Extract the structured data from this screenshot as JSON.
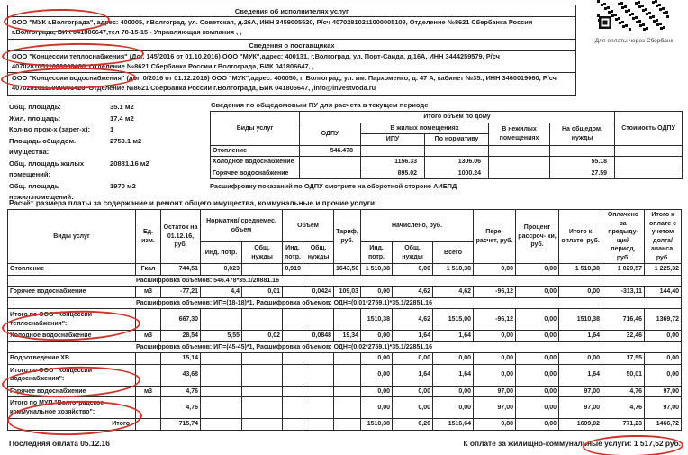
{
  "executors": {
    "title": "Сведения об исполнителях услуг",
    "text": "ООО \"МУК г.Волгограда\", адрес: 400005, г.Волгоград, ул. Советская, д.26А, ИНН 3459005520, Р/сч 40702810211000005109, Отделение  №8621 Сбербанка России г.Волгограда, БИК 041806647,тел 78-15-15 - Управляющая компания , ,"
  },
  "suppliers": {
    "title": "Сведения о поставщиках",
    "heat": "ООО \"Концессии теплоснабжения\" (Дог. 145/2016 от 01.10.2016) ООО \"МУК\",адрес:  400131, г.Волгоград, ул. Порт-Саида, д.16А, ИНН 3444259579, Р/сч 40702810511000008466, Отделение  №8621 Сбербанка России г.Волгограда, БИК 041806647, ,",
    "water": "ООО \"Концессии водоснабжения\" (дог. 0/2016 от 01.12.2016) ООО \"МУК\",адрес: 400050, г. Волгоград, ул. им. Пархоменко, д. 47 А, кабинет №35., ИНН 3460019060, Р/сч 40702810111000001423, Отделение  №8621 Сбербанка России г.Волгограда, БИК 041806647, ,info@investvoda.ru"
  },
  "qr": {
    "caption": "Для оплаты через Сбербанк"
  },
  "apartment": {
    "rows": [
      {
        "label": "Общ. площадь:",
        "value": "35.1 м2"
      },
      {
        "label": "Жил. площадь:",
        "value": "17.4 м2"
      },
      {
        "label": "Кол-во прож-х (зарег-х):",
        "value": "1"
      },
      {
        "label": "Площадь общедом. имущества:",
        "value": "2759.1 м2"
      },
      {
        "label": "Общ. площадь жилых помещений:",
        "value": "20881.16 м2"
      },
      {
        "label": "Общ. площадь нежил.помещений:",
        "value": "1970 м2"
      }
    ]
  },
  "odpu_table": {
    "title": "Сведения по общедомовым ПУ для расчета в текущем периоде",
    "headers": {
      "services": "Виды услуг",
      "group": "Итого объем по дому",
      "odpu": "ОДПУ",
      "residential": "В жилых помещениях",
      "ipu": "ИПУ",
      "by_norm": "По нормативу",
      "nonresidential": "В нежилых помещениях",
      "common_needs": "На общедом. нужды",
      "cost": "Стоимость ОДПУ"
    },
    "rows": [
      [
        "Отопление",
        "546.478",
        "",
        "",
        "",
        "",
        ""
      ],
      [
        "Холодное водоснабжение",
        "",
        "1156.33",
        "1306.06",
        "",
        "55.18",
        ""
      ],
      [
        "Горячее водоснабжение",
        "",
        "895.02",
        "1000.24",
        "",
        "27.59",
        ""
      ]
    ],
    "footnote": "Расшифровку показаний по ОДПУ смотрите на оборотной стороне АИЕПД"
  },
  "calc_table": {
    "title": "Расчёт размера платы за содержание и ремонт общего имущества, коммунальные и прочие услуги:",
    "headers": {
      "services": "Виды услуг",
      "unit": "Ед. изм.",
      "balance": "Остаток на 01.12.16, руб.",
      "norm_group": "Норматив/ среднемес. объем",
      "volume_group": "Объем",
      "tariff": "Тариф, руб.",
      "accrued_group": "Начислено, руб.",
      "recalc": "Пере- расчет, руб.",
      "installment": "Процент рассроч- ки, руб.",
      "total_due": "Итого к оплате, руб.",
      "paid_prev": "Оплачено за предыду- щий период, руб.",
      "total_with_debt": "Итого к оплате с учетом долга/ аванса, руб.",
      "ind": "Инд. потр.",
      "common": "Общ. нужды",
      "total_sub": "Всего"
    },
    "rows": [
      {
        "type": "data",
        "cells": [
          "Отопление",
          "Гкал",
          "744,51",
          "0,023",
          "",
          "0,919",
          "",
          "1643,50",
          "1 510,38",
          "0,00",
          "1 510,38",
          "0,00",
          "0,00",
          "1 510,38",
          "1 029,57",
          "1 225,32"
        ]
      },
      {
        "type": "note",
        "text": "Расшифровка объемов: 546.478*35.1/20881.16"
      },
      {
        "type": "data",
        "cells": [
          "Горячее водоснабжение",
          "м3",
          "-77,21",
          "4,4",
          "0,01",
          "",
          "0,0424",
          "109,03",
          "0,00",
          "4,62",
          "4,62",
          "-96,12",
          "0,00",
          "0,00",
          "-313,11",
          "144,40"
        ]
      },
      {
        "type": "note",
        "text": "Расшифровка объемов: ИП=(18-18)*1, Расшифровка объемов: ОДН=(0.01*2759.1)*35.1/22851.16"
      },
      {
        "type": "subtotal",
        "cells": [
          "Итого по ООО \"Концессии теплоснабжения\":",
          "",
          "667,30",
          "",
          "",
          "",
          "",
          "",
          "1510,38",
          "4,62",
          "1515,00",
          "-96,12",
          "0,00",
          "1510,38",
          "716,46",
          "1369,72"
        ]
      },
      {
        "type": "data",
        "cells": [
          "Холодное водоснабжение",
          "м3",
          "28,54",
          "5,55",
          "0,02",
          "",
          "0,0848",
          "19,34",
          "0,00",
          "1,64",
          "1,64",
          "0,00",
          "0,00",
          "1,64",
          "32,46",
          "0,00"
        ]
      },
      {
        "type": "note",
        "text": "Расшифровка объемов: ИП=(45-45)*1, Расшифровка объемов: ОДН=(0.02*2759.1)*35.1/22851.16"
      },
      {
        "type": "data",
        "cells": [
          "Водоотведение ХВ",
          "",
          "15,14",
          "",
          "",
          "",
          "",
          "",
          "0,00",
          "0,00",
          "0,00",
          "0,00",
          "0,00",
          "0,00",
          "17,55",
          "0,00"
        ]
      },
      {
        "type": "subtotal",
        "cells": [
          "Итого по ООО \"Концессии водоснабжения\":",
          "",
          "43,68",
          "",
          "",
          "",
          "",
          "",
          "0,00",
          "1,64",
          "1,64",
          "0,00",
          "0,00",
          "1,64",
          "50,01",
          "0,00"
        ]
      },
      {
        "type": "data",
        "cells": [
          "Горячее водоснабжение",
          "м3",
          "4,76",
          "",
          "",
          "",
          "",
          "",
          "0,00",
          "0,00",
          "0,00",
          "97,00",
          "0,00",
          "97,00",
          "4,76",
          "97,00"
        ]
      },
      {
        "type": "subtotal",
        "cells": [
          "Итого по МУП \"Волгоградское коммунальное хозяйство\":",
          "",
          "4,76",
          "",
          "",
          "",
          "",
          "",
          "0,00",
          "0,00",
          "0,00",
          "97,00",
          "0,00",
          "97,00",
          "4,76",
          "97,00"
        ]
      },
      {
        "type": "total",
        "cells": [
          "Итого",
          "",
          "715,74",
          "",
          "",
          "",
          "",
          "",
          "1510,38",
          "6,26",
          "1516,64",
          "0,88",
          "0,00",
          "1609,02",
          "771,23",
          "1466,72"
        ]
      }
    ]
  },
  "footer": {
    "last_payment": "Последняя оплата 05.12.16",
    "total_label": "К оплате за жилищно-коммунальные услуги:",
    "total_value": "1 517,52 руб."
  }
}
